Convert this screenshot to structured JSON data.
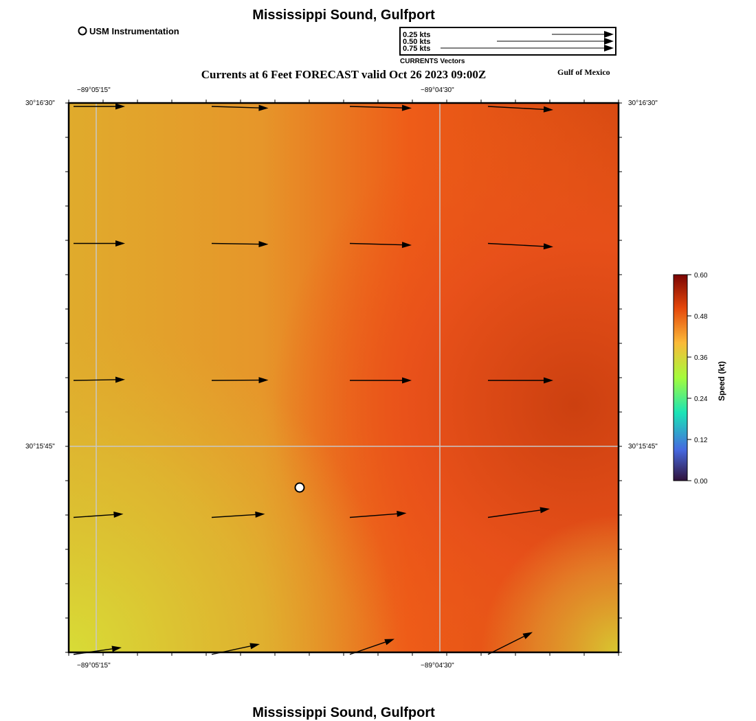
{
  "header": {
    "region_title": "Mississippi Sound, Gulfport",
    "forecast_title": "Currents at 6 Feet FORECAST valid Oct 26 2023 09:00Z",
    "gulf_label": "Gulf of Mexico",
    "station_legend_label": "USM Instrumentation"
  },
  "vector_legend": {
    "items": [
      "0.25 kts",
      "0.50 kts",
      "0.75 kts"
    ],
    "caption": "CURRENTS Vectors"
  },
  "map": {
    "lon_ticks": [
      "−89°05'15\"",
      "−89°04'30\""
    ],
    "lat_ticks": [
      "30°16'30\"",
      "30°15'45\""
    ],
    "colors": {
      "background_yellow": "#d8d836",
      "mid_orange": "#e8a028",
      "orange_red": "#ee5a18",
      "deep_red": "#cc4010",
      "grid_line": "#c8c8c8",
      "station_marker": "#ffffff"
    },
    "vectors": [
      {
        "col": 0,
        "row": 0,
        "u": 0.3,
        "v": 0.0
      },
      {
        "col": 1,
        "row": 0,
        "u": 0.33,
        "v": -0.01
      },
      {
        "col": 2,
        "row": 0,
        "u": 0.36,
        "v": -0.01
      },
      {
        "col": 3,
        "row": 0,
        "u": 0.38,
        "v": -0.02
      },
      {
        "col": 0,
        "row": 1,
        "u": 0.3,
        "v": 0.0
      },
      {
        "col": 1,
        "row": 1,
        "u": 0.33,
        "v": -0.005
      },
      {
        "col": 2,
        "row": 1,
        "u": 0.36,
        "v": -0.01
      },
      {
        "col": 3,
        "row": 1,
        "u": 0.38,
        "v": -0.02
      },
      {
        "col": 0,
        "row": 2,
        "u": 0.3,
        "v": 0.005
      },
      {
        "col": 1,
        "row": 2,
        "u": 0.33,
        "v": 0.002
      },
      {
        "col": 2,
        "row": 2,
        "u": 0.36,
        "v": 0.0
      },
      {
        "col": 3,
        "row": 2,
        "u": 0.38,
        "v": 0.0
      },
      {
        "col": 0,
        "row": 3,
        "u": 0.29,
        "v": 0.02
      },
      {
        "col": 1,
        "row": 3,
        "u": 0.31,
        "v": 0.02
      },
      {
        "col": 2,
        "row": 3,
        "u": 0.33,
        "v": 0.025
      },
      {
        "col": 3,
        "row": 3,
        "u": 0.36,
        "v": 0.05
      },
      {
        "col": 0,
        "row": 4,
        "u": 0.28,
        "v": 0.04
      },
      {
        "col": 1,
        "row": 4,
        "u": 0.28,
        "v": 0.06
      },
      {
        "col": 2,
        "row": 4,
        "u": 0.26,
        "v": 0.09
      },
      {
        "col": 3,
        "row": 4,
        "u": 0.26,
        "v": 0.13
      }
    ]
  },
  "colorbar": {
    "label": "Speed (kt)",
    "ticks": [
      "0.00",
      "0.12",
      "0.24",
      "0.36",
      "0.48",
      "0.60"
    ],
    "colors": [
      "#30123b",
      "#4669e0",
      "#1ae4b6",
      "#a4fc3c",
      "#fbb938",
      "#e4460a",
      "#7a0403"
    ]
  },
  "footer": {
    "region_title": "Mississippi Sound, Gulfport"
  }
}
